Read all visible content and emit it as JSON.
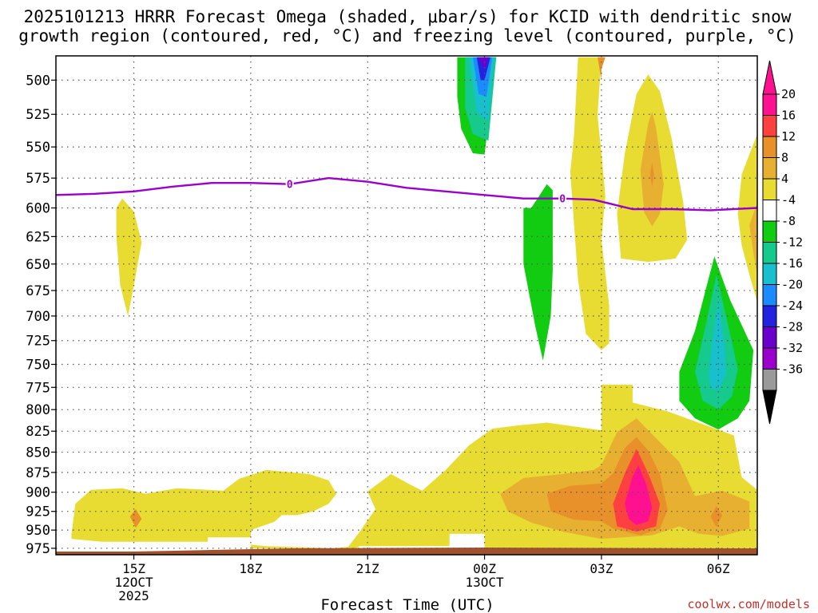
{
  "chart_data": {
    "type": "contour",
    "title_line1": "2025101213 HRRR Forecast Omega (shaded, μbar/s) for KCID with dendritic snow",
    "title_line2": "growth region (contoured, red, °C) and freezing level (contoured, purple, °C)",
    "xlabel": "Forecast Time (UTC)",
    "credit": "coolwx.com/models",
    "x_range_hours": [
      13,
      31
    ],
    "x_ticks": [
      {
        "hour": 15,
        "lines": [
          "15Z",
          "12OCT",
          "2025"
        ]
      },
      {
        "hour": 18,
        "lines": [
          "18Z"
        ]
      },
      {
        "hour": 21,
        "lines": [
          "21Z"
        ]
      },
      {
        "hour": 24,
        "lines": [
          "00Z",
          "13OCT"
        ]
      },
      {
        "hour": 27,
        "lines": [
          "03Z"
        ]
      },
      {
        "hour": 30,
        "lines": [
          "06Z"
        ]
      }
    ],
    "y_range_hpa": [
      984,
      483
    ],
    "y_ticks": [
      500,
      525,
      550,
      575,
      600,
      625,
      650,
      675,
      700,
      725,
      750,
      775,
      800,
      825,
      850,
      875,
      900,
      925,
      950,
      975
    ],
    "colorbar": {
      "colors": [
        "#000000",
        "#9a9a9a",
        "#9900cc",
        "#6a00cc",
        "#2222e0",
        "#1a8cff",
        "#17c0cc",
        "#16c98c",
        "#12cc12",
        "#ffffff",
        "#e8dc32",
        "#e8b030",
        "#e8902a",
        "#ff4040",
        "#ff1090",
        "#ff1090"
      ],
      "labels": [
        "20",
        "16",
        "12",
        "8",
        "4",
        "-4",
        "-8",
        "-12",
        "-16",
        "-20",
        "-24",
        "-28",
        "-32",
        "-36"
      ]
    },
    "freezing_level": {
      "label": "0",
      "label_hours": [
        19,
        26
      ],
      "points": [
        [
          13,
          589
        ],
        [
          14,
          588
        ],
        [
          15,
          586
        ],
        [
          16,
          582
        ],
        [
          17,
          579
        ],
        [
          18,
          579
        ],
        [
          19,
          580
        ],
        [
          20,
          575
        ],
        [
          21,
          578
        ],
        [
          22,
          583
        ],
        [
          23,
          586
        ],
        [
          24,
          589
        ],
        [
          25,
          592
        ],
        [
          26,
          592
        ],
        [
          26.8,
          593
        ],
        [
          27.8,
          601
        ],
        [
          28.8,
          601
        ],
        [
          29.8,
          602
        ],
        [
          31,
          600
        ]
      ]
    },
    "ground_hpa": 984,
    "omega_regions": [
      {
        "color": "#e8dc32",
        "pts": [
          [
            14.7,
            592
          ],
          [
            15.0,
            603
          ],
          [
            15.2,
            630
          ],
          [
            15.0,
            670
          ],
          [
            14.85,
            700
          ],
          [
            14.65,
            670
          ],
          [
            14.55,
            625
          ],
          [
            14.55,
            600
          ]
        ]
      },
      {
        "color": "#e8dc32",
        "pts": [
          [
            13.4,
            955
          ],
          [
            13.5,
            915
          ],
          [
            13.9,
            897
          ],
          [
            14.7,
            895
          ],
          [
            15.3,
            902
          ],
          [
            16.1,
            895
          ],
          [
            16.9,
            897
          ],
          [
            17.3,
            898
          ],
          [
            17.7,
            883
          ],
          [
            18.4,
            872
          ],
          [
            19.5,
            877
          ],
          [
            20.0,
            885
          ],
          [
            20.2,
            902
          ],
          [
            20.0,
            915
          ],
          [
            19.6,
            925
          ],
          [
            19.2,
            930
          ],
          [
            18.8,
            930
          ],
          [
            18.6,
            939
          ],
          [
            18.0,
            950
          ],
          [
            18.0,
            970
          ],
          [
            18.4,
            972
          ],
          [
            20.1,
            975
          ],
          [
            20.5,
            973
          ],
          [
            20.8,
            952
          ],
          [
            21.2,
            922
          ],
          [
            21.0,
            899
          ],
          [
            21.6,
            877
          ],
          [
            22.0,
            888
          ],
          [
            22.4,
            898
          ],
          [
            23.0,
            872
          ],
          [
            23.6,
            842
          ],
          [
            24.2,
            822
          ],
          [
            24.9,
            818
          ],
          [
            25.6,
            815
          ],
          [
            27.0,
            824
          ],
          [
            27.0,
            772
          ],
          [
            27.8,
            772
          ],
          [
            27.8,
            792
          ],
          [
            28.7,
            802
          ],
          [
            30.4,
            830
          ],
          [
            30.6,
            881
          ],
          [
            31,
            897
          ],
          [
            31,
            975
          ],
          [
            24,
            975
          ],
          [
            24,
            955
          ],
          [
            23.1,
            955
          ],
          [
            23.1,
            972
          ],
          [
            20.8,
            972
          ],
          [
            20.7,
            975
          ],
          [
            18,
            975
          ],
          [
            18,
            960
          ],
          [
            16.9,
            960
          ],
          [
            16.9,
            966
          ],
          [
            14.2,
            966
          ],
          [
            13.4,
            962
          ]
        ]
      },
      {
        "color": "#e8b030",
        "pts": [
          [
            24.4,
            902
          ],
          [
            25.0,
            882
          ],
          [
            26.0,
            877
          ],
          [
            26.8,
            872
          ],
          [
            27.0,
            866
          ],
          [
            27.4,
            826
          ],
          [
            27.9,
            810
          ],
          [
            28.5,
            838
          ],
          [
            29.0,
            862
          ],
          [
            29.4,
            905
          ],
          [
            30.1,
            898
          ],
          [
            30.8,
            912
          ],
          [
            30.8,
            948
          ],
          [
            30.1,
            958
          ],
          [
            29.5,
            955
          ],
          [
            29.0,
            945
          ],
          [
            28.3,
            957
          ],
          [
            27.0,
            962
          ],
          [
            26.0,
            952
          ],
          [
            25.2,
            940
          ],
          [
            24.6,
            925
          ]
        ]
      },
      {
        "color": "#e8902a",
        "pts": [
          [
            25.6,
            902
          ],
          [
            26.2,
            892
          ],
          [
            27.0,
            889
          ],
          [
            27.3,
            876
          ],
          [
            27.6,
            845
          ],
          [
            27.9,
            832
          ],
          [
            28.2,
            848
          ],
          [
            28.5,
            877
          ],
          [
            28.7,
            923
          ],
          [
            28.5,
            948
          ],
          [
            28.0,
            957
          ],
          [
            27.3,
            948
          ],
          [
            27.0,
            938
          ],
          [
            26.3,
            936
          ],
          [
            25.7,
            925
          ]
        ]
      },
      {
        "color": "#ff4040",
        "pts": [
          [
            27.3,
            915
          ],
          [
            27.6,
            876
          ],
          [
            27.9,
            846
          ],
          [
            28.2,
            876
          ],
          [
            28.5,
            915
          ],
          [
            28.4,
            945
          ],
          [
            27.9,
            952
          ],
          [
            27.4,
            945
          ]
        ]
      },
      {
        "color": "#ff1090",
        "pts": [
          [
            27.6,
            915
          ],
          [
            27.8,
            880
          ],
          [
            27.95,
            866
          ],
          [
            28.15,
            890
          ],
          [
            28.3,
            920
          ],
          [
            28.2,
            938
          ],
          [
            27.9,
            943
          ],
          [
            27.7,
            935
          ]
        ]
      },
      {
        "color": "#e8902a",
        "pts": [
          [
            29.8,
            932
          ],
          [
            29.95,
            918
          ],
          [
            30.1,
            930
          ],
          [
            29.95,
            946
          ]
        ]
      },
      {
        "color": "#e8902a",
        "pts": [
          [
            14.9,
            932
          ],
          [
            15.05,
            922
          ],
          [
            15.2,
            935
          ],
          [
            15.05,
            947
          ]
        ]
      },
      {
        "color": "#e8dc32",
        "pts": [
          [
            26.4,
            484
          ],
          [
            27.0,
            484
          ],
          [
            26.9,
            526
          ],
          [
            27.0,
            555
          ],
          [
            27.1,
            590
          ],
          [
            27.0,
            628
          ],
          [
            27.2,
            690
          ],
          [
            27.2,
            728
          ],
          [
            27.0,
            735
          ],
          [
            26.6,
            718
          ],
          [
            26.4,
            665
          ],
          [
            26.3,
            615
          ],
          [
            26.2,
            570
          ],
          [
            26.3,
            540
          ]
        ]
      },
      {
        "color": "#e8902a",
        "pts": [
          [
            26.9,
            484
          ],
          [
            27.1,
            484
          ],
          [
            27.0,
            492
          ],
          [
            27.0,
            500
          ]
        ]
      },
      {
        "color": "#e8dc32",
        "pts": [
          [
            27.5,
            645
          ],
          [
            27.4,
            605
          ],
          [
            27.6,
            555
          ],
          [
            27.9,
            510
          ],
          [
            28.2,
            496
          ],
          [
            28.5,
            508
          ],
          [
            28.8,
            543
          ],
          [
            29.1,
            595
          ],
          [
            29.2,
            628
          ],
          [
            28.9,
            645
          ],
          [
            28.2,
            648
          ]
        ]
      },
      {
        "color": "#e8b030",
        "pts": [
          [
            28.0,
            568
          ],
          [
            28.2,
            532
          ],
          [
            28.3,
            523
          ],
          [
            28.4,
            535
          ],
          [
            28.6,
            580
          ],
          [
            28.5,
            605
          ],
          [
            28.3,
            616
          ],
          [
            28.1,
            604
          ]
        ]
      },
      {
        "color": "#e8902a",
        "pts": [
          [
            28.25,
            572
          ],
          [
            28.3,
            562
          ],
          [
            28.35,
            572
          ],
          [
            28.3,
            582
          ]
        ]
      },
      {
        "color": "#e8dc32",
        "pts": [
          [
            31,
            540
          ],
          [
            30.6,
            572
          ],
          [
            30.5,
            605
          ],
          [
            30.6,
            633
          ],
          [
            30.8,
            660
          ],
          [
            31,
            686
          ]
        ]
      },
      {
        "color": "#e8b030",
        "pts": [
          [
            31,
            595
          ],
          [
            30.8,
            615
          ],
          [
            30.9,
            640
          ],
          [
            31,
            660
          ]
        ]
      },
      {
        "color": "#12cc12",
        "pts": [
          [
            23.3,
            484
          ],
          [
            24.3,
            484
          ],
          [
            24.0,
            556
          ],
          [
            23.7,
            555
          ],
          [
            23.4,
            536
          ],
          [
            23.3,
            512
          ]
        ]
      },
      {
        "color": "#16c98c",
        "pts": [
          [
            23.5,
            484
          ],
          [
            24.3,
            484
          ],
          [
            24.1,
            545
          ],
          [
            23.7,
            540
          ],
          [
            23.5,
            520
          ]
        ]
      },
      {
        "color": "#17c0cc",
        "pts": [
          [
            23.6,
            484
          ],
          [
            24.25,
            484
          ],
          [
            24.1,
            530
          ],
          [
            23.8,
            524
          ]
        ]
      },
      {
        "color": "#1a8cff",
        "pts": [
          [
            23.7,
            484
          ],
          [
            24.2,
            484
          ],
          [
            24.05,
            512
          ],
          [
            23.85,
            510
          ]
        ]
      },
      {
        "color": "#2222e0",
        "pts": [
          [
            23.8,
            484
          ],
          [
            24.15,
            484
          ],
          [
            24.0,
            500
          ],
          [
            23.9,
            500
          ]
        ]
      },
      {
        "color": "#6a00cc",
        "pts": [
          [
            23.85,
            484
          ],
          [
            24.1,
            484
          ],
          [
            24.0,
            493
          ]
        ]
      },
      {
        "color": "#12cc12",
        "pts": [
          [
            25.0,
            600
          ],
          [
            25.2,
            600
          ],
          [
            25.6,
            580
          ],
          [
            25.75,
            585
          ],
          [
            25.75,
            656
          ],
          [
            25.7,
            700
          ],
          [
            25.5,
            746
          ],
          [
            25.3,
            710
          ],
          [
            25.0,
            650
          ]
        ]
      },
      {
        "color": "#12cc12",
        "pts": [
          [
            29.0,
            758
          ],
          [
            29.4,
            715
          ],
          [
            29.9,
            643
          ],
          [
            30.3,
            684
          ],
          [
            30.9,
            735
          ],
          [
            30.8,
            790
          ],
          [
            30.5,
            810
          ],
          [
            30.0,
            823
          ],
          [
            29.4,
            810
          ],
          [
            29.0,
            790
          ]
        ]
      },
      {
        "color": "#16c98c",
        "pts": [
          [
            29.4,
            758
          ],
          [
            29.7,
            705
          ],
          [
            29.95,
            660
          ],
          [
            30.2,
            700
          ],
          [
            30.5,
            755
          ],
          [
            30.35,
            785
          ],
          [
            30.0,
            800
          ],
          [
            29.6,
            790
          ]
        ]
      },
      {
        "color": "#17c0cc",
        "pts": [
          [
            29.75,
            760
          ],
          [
            29.85,
            725
          ],
          [
            30.0,
            683
          ],
          [
            30.15,
            725
          ],
          [
            30.2,
            760
          ],
          [
            30.0,
            779
          ],
          [
            29.8,
            775
          ]
        ]
      }
    ]
  }
}
